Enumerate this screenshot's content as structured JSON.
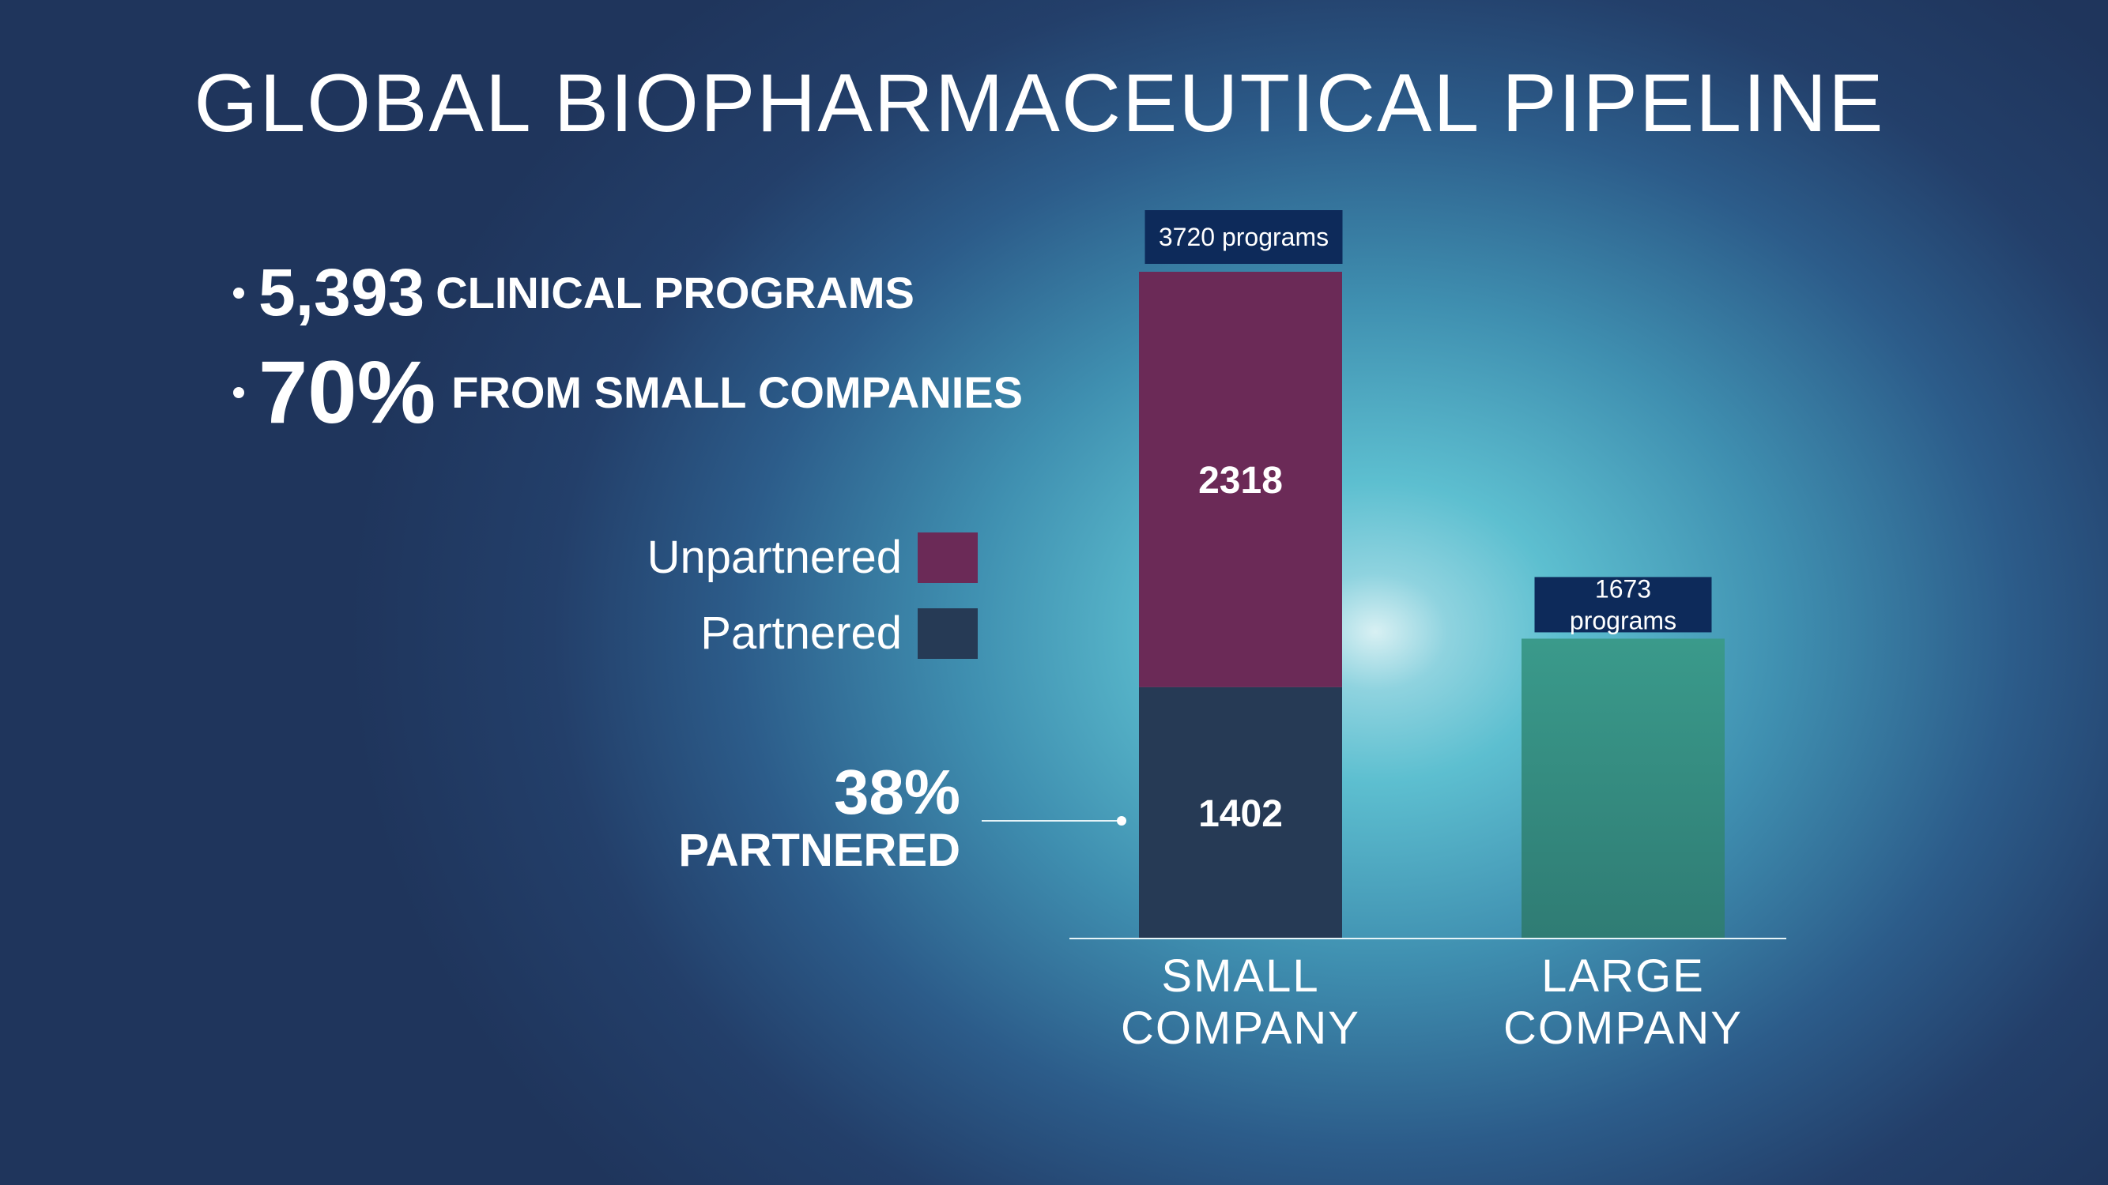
{
  "title": "GLOBAL BIOPHARMACEUTICAL  PIPELINE",
  "bullets": [
    {
      "big": "5,393",
      "rest": "CLINICAL PROGRAMS"
    },
    {
      "big": "70%",
      "rest": "FROM SMALL COMPANIES"
    }
  ],
  "annotation": {
    "pct": "38%",
    "label": "PARTNERED"
  },
  "colors": {
    "unpartnered": "#6b2a57",
    "partnered": "#263a55",
    "large": "#3a9289",
    "total_label_bg": "#0d2a5a"
  },
  "chart_data": {
    "type": "bar",
    "stacked": true,
    "categories": [
      "SMALL COMPANY",
      "LARGE COMPANY"
    ],
    "category_lines": [
      [
        "SMALL",
        "COMPANY"
      ],
      [
        "LARGE",
        "COMPANY"
      ]
    ],
    "series": [
      {
        "name": "Partnered",
        "values": [
          1402,
          null
        ],
        "value_labels": [
          "1402",
          ""
        ]
      },
      {
        "name": "Unpartnered",
        "values": [
          2318,
          null
        ],
        "value_labels": [
          "2318",
          ""
        ]
      },
      {
        "name": "",
        "values": [
          null,
          1673
        ],
        "value_labels": [
          "",
          ""
        ]
      }
    ],
    "totals": [
      3720,
      1673
    ],
    "total_labels": [
      [
        "3720 programs"
      ],
      [
        "1673",
        "programs"
      ]
    ],
    "legend": [
      "Unpartnered",
      "Partnered"
    ],
    "legend_position": "left",
    "grid": false,
    "ylim": [
      0,
      3720
    ]
  }
}
